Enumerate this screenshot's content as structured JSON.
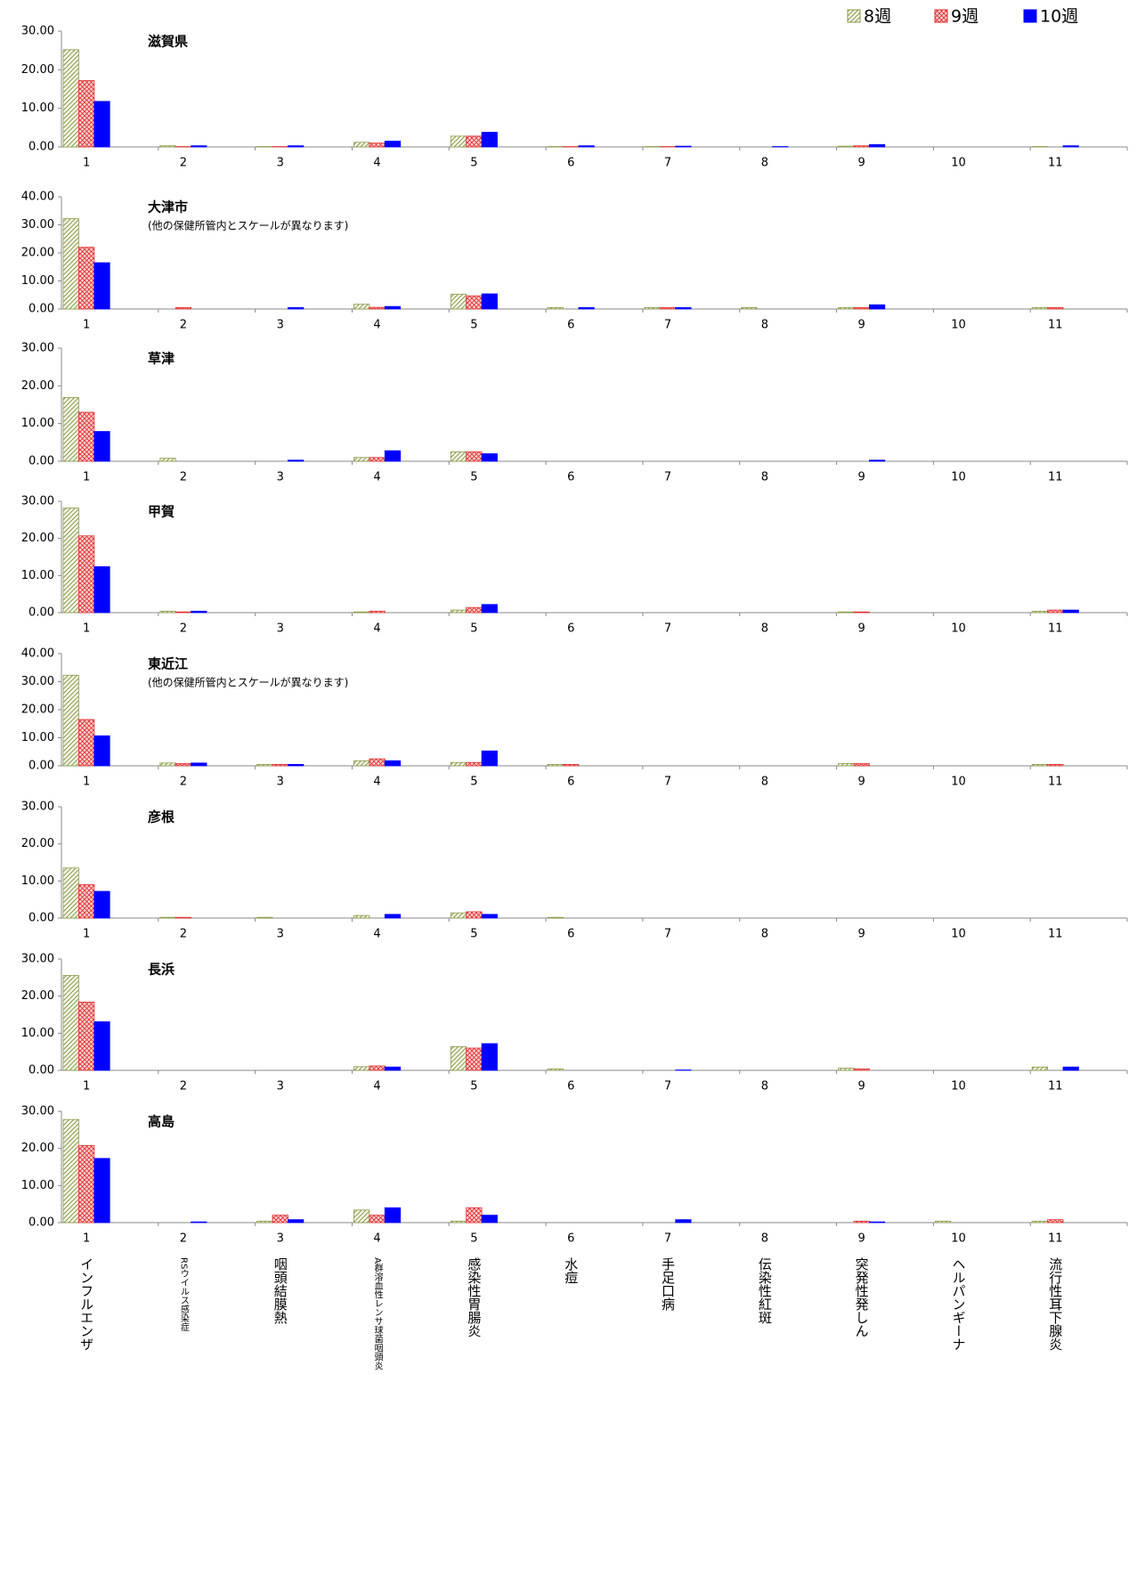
{
  "chart_data": [
    {
      "type": "bar",
      "title": "滋賀県",
      "categories": [
        "1",
        "2",
        "3",
        "4",
        "5",
        "6",
        "7",
        "8",
        "9",
        "10",
        "11"
      ],
      "series": [
        {
          "name": "8週",
          "color": "#8a9a48",
          "pattern": "hatch",
          "values": [
            25.2,
            0.3,
            0.1,
            1.2,
            2.8,
            0.1,
            0.1,
            0,
            0.2,
            0,
            0.1
          ]
        },
        {
          "name": "9週",
          "color": "#e03030",
          "pattern": "cross",
          "values": [
            17.2,
            0.1,
            0.1,
            1.0,
            2.8,
            0.1,
            0.1,
            0,
            0.3,
            0,
            0
          ]
        },
        {
          "name": "10週",
          "color": "#0000ff",
          "pattern": "solid",
          "values": [
            11.8,
            0.3,
            0.3,
            1.5,
            3.8,
            0.3,
            0.2,
            0.1,
            0.6,
            0,
            0.3
          ]
        }
      ],
      "ylim": [
        0,
        30
      ],
      "yticks": [
        {
          "value": 0,
          "label": "0.00"
        },
        {
          "value": 10,
          "label": "10.00"
        },
        {
          "value": 20,
          "label": "20.00"
        },
        {
          "value": 30,
          "label": "30.00"
        }
      ]
    },
    {
      "type": "bar",
      "title": "大津市",
      "subtitle": "(他の保健所管内とスケールが異なります)",
      "categories": [
        "1",
        "2",
        "3",
        "4",
        "5",
        "6",
        "7",
        "8",
        "9",
        "10",
        "11"
      ],
      "series": [
        {
          "name": "8週",
          "color": "#8a9a48",
          "pattern": "hatch",
          "values": [
            32.2,
            0,
            0,
            1.7,
            5.3,
            0.5,
            0.5,
            0.5,
            0.5,
            0,
            0.5
          ]
        },
        {
          "name": "9週",
          "color": "#e03030",
          "pattern": "cross",
          "values": [
            22.0,
            0.5,
            0,
            0.6,
            4.7,
            0,
            0.5,
            0,
            0.5,
            0,
            0.5
          ]
        },
        {
          "name": "10週",
          "color": "#0000ff",
          "pattern": "solid",
          "values": [
            16.5,
            0,
            0.5,
            0.9,
            5.4,
            0.5,
            0.5,
            0,
            1.5,
            0,
            0
          ]
        }
      ],
      "ylim": [
        0,
        40
      ],
      "yticks": [
        {
          "value": 0,
          "label": "0.00"
        },
        {
          "value": 10,
          "label": "10.00"
        },
        {
          "value": 20,
          "label": "20.00"
        },
        {
          "value": 30,
          "label": "30.00"
        },
        {
          "value": 40,
          "label": "40.00"
        }
      ]
    },
    {
      "type": "bar",
      "title": "草津",
      "categories": [
        "1",
        "2",
        "3",
        "4",
        "5",
        "6",
        "7",
        "8",
        "9",
        "10",
        "11"
      ],
      "series": [
        {
          "name": "8週",
          "color": "#8a9a48",
          "pattern": "hatch",
          "values": [
            16.9,
            0.8,
            0,
            1.0,
            2.5,
            0,
            0,
            0,
            0,
            0,
            0
          ]
        },
        {
          "name": "9週",
          "color": "#e03030",
          "pattern": "cross",
          "values": [
            13.0,
            0,
            0,
            1.0,
            2.5,
            0,
            0,
            0,
            0,
            0,
            0
          ]
        },
        {
          "name": "10週",
          "color": "#0000ff",
          "pattern": "solid",
          "values": [
            7.9,
            0,
            0.3,
            2.8,
            2.0,
            0,
            0,
            0,
            0.3,
            0,
            0
          ]
        }
      ],
      "ylim": [
        0,
        30
      ],
      "yticks": [
        {
          "value": 0,
          "label": "0.00"
        },
        {
          "value": 10,
          "label": "10.00"
        },
        {
          "value": 20,
          "label": "20.00"
        },
        {
          "value": 30,
          "label": "30.00"
        }
      ]
    },
    {
      "type": "bar",
      "title": "甲賀",
      "categories": [
        "1",
        "2",
        "3",
        "4",
        "5",
        "6",
        "7",
        "8",
        "9",
        "10",
        "11"
      ],
      "series": [
        {
          "name": "8週",
          "color": "#8a9a48",
          "pattern": "hatch",
          "values": [
            28.2,
            0.4,
            0,
            0.2,
            0.7,
            0,
            0,
            0,
            0.2,
            0,
            0.4
          ]
        },
        {
          "name": "9週",
          "color": "#e03030",
          "pattern": "cross",
          "values": [
            20.7,
            0.2,
            0,
            0.4,
            1.4,
            0,
            0,
            0,
            0.2,
            0,
            0.7
          ]
        },
        {
          "name": "10週",
          "color": "#0000ff",
          "pattern": "solid",
          "values": [
            12.4,
            0.4,
            0,
            0,
            2.2,
            0,
            0,
            0,
            0,
            0,
            0.7
          ]
        }
      ],
      "ylim": [
        0,
        30
      ],
      "yticks": [
        {
          "value": 0,
          "label": "0.00"
        },
        {
          "value": 10,
          "label": "10.00"
        },
        {
          "value": 20,
          "label": "20.00"
        },
        {
          "value": 30,
          "label": "30.00"
        }
      ]
    },
    {
      "type": "bar",
      "title": "東近江",
      "subtitle": "(他の保健所管内とスケールが異なります)",
      "categories": [
        "1",
        "2",
        "3",
        "4",
        "5",
        "6",
        "7",
        "8",
        "9",
        "10",
        "11"
      ],
      "series": [
        {
          "name": "8週",
          "color": "#8a9a48",
          "pattern": "hatch",
          "values": [
            32.3,
            1.0,
            0.5,
            1.8,
            1.2,
            0.5,
            0,
            0,
            0.8,
            0,
            0.5
          ]
        },
        {
          "name": "9週",
          "color": "#e03030",
          "pattern": "cross",
          "values": [
            16.5,
            0.8,
            0.5,
            2.5,
            1.2,
            0.5,
            0,
            0,
            0.8,
            0,
            0.5
          ]
        },
        {
          "name": "10週",
          "color": "#0000ff",
          "pattern": "solid",
          "values": [
            10.7,
            1.0,
            0.5,
            1.8,
            5.3,
            0,
            0,
            0,
            0,
            0,
            0
          ]
        }
      ],
      "ylim": [
        0,
        40
      ],
      "yticks": [
        {
          "value": 0,
          "label": "0.00"
        },
        {
          "value": 10,
          "label": "10.00"
        },
        {
          "value": 20,
          "label": "20.00"
        },
        {
          "value": 30,
          "label": "30.00"
        },
        {
          "value": 40,
          "label": "40.00"
        }
      ]
    },
    {
      "type": "bar",
      "title": "彦根",
      "categories": [
        "1",
        "2",
        "3",
        "4",
        "5",
        "6",
        "7",
        "8",
        "9",
        "10",
        "11"
      ],
      "series": [
        {
          "name": "8週",
          "color": "#8a9a48",
          "pattern": "hatch",
          "values": [
            13.5,
            0.2,
            0.2,
            0.7,
            1.4,
            0.2,
            0,
            0,
            0,
            0,
            0
          ]
        },
        {
          "name": "9週",
          "color": "#e03030",
          "pattern": "cross",
          "values": [
            9.0,
            0.2,
            0,
            0,
            1.7,
            0,
            0,
            0,
            0,
            0,
            0
          ]
        },
        {
          "name": "10週",
          "color": "#0000ff",
          "pattern": "solid",
          "values": [
            7.2,
            0,
            0,
            1.0,
            1.0,
            0,
            0,
            0,
            0,
            0,
            0
          ]
        }
      ],
      "ylim": [
        0,
        30
      ],
      "yticks": [
        {
          "value": 0,
          "label": "0.00"
        },
        {
          "value": 10,
          "label": "10.00"
        },
        {
          "value": 20,
          "label": "20.00"
        },
        {
          "value": 30,
          "label": "30.00"
        }
      ]
    },
    {
      "type": "bar",
      "title": "長浜",
      "categories": [
        "1",
        "2",
        "3",
        "4",
        "5",
        "6",
        "7",
        "8",
        "9",
        "10",
        "11"
      ],
      "series": [
        {
          "name": "8週",
          "color": "#8a9a48",
          "pattern": "hatch",
          "values": [
            25.6,
            0,
            0,
            1.0,
            6.4,
            0.4,
            0,
            0,
            0.6,
            0,
            0.9
          ]
        },
        {
          "name": "9週",
          "color": "#e03030",
          "pattern": "cross",
          "values": [
            18.4,
            0,
            0,
            1.2,
            6.0,
            0,
            0,
            0,
            0.4,
            0,
            0
          ]
        },
        {
          "name": "10週",
          "color": "#0000ff",
          "pattern": "solid",
          "values": [
            13.1,
            0,
            0,
            0.9,
            7.2,
            0,
            0.1,
            0,
            0,
            0,
            0.9
          ]
        }
      ],
      "ylim": [
        0,
        30
      ],
      "yticks": [
        {
          "value": 0,
          "label": "0.00"
        },
        {
          "value": 10,
          "label": "10.00"
        },
        {
          "value": 20,
          "label": "20.00"
        },
        {
          "value": 30,
          "label": "30.00"
        }
      ]
    },
    {
      "type": "bar",
      "title": "高島",
      "categories": [
        "1",
        "2",
        "3",
        "4",
        "5",
        "6",
        "7",
        "8",
        "9",
        "10",
        "11"
      ],
      "series": [
        {
          "name": "8週",
          "color": "#8a9a48",
          "pattern": "hatch",
          "values": [
            27.8,
            0,
            0.4,
            3.4,
            0.4,
            0,
            0,
            0,
            0,
            0.4,
            0.4
          ]
        },
        {
          "name": "9週",
          "color": "#e03030",
          "pattern": "cross",
          "values": [
            20.8,
            0,
            2.0,
            2.0,
            4.0,
            0,
            0,
            0,
            0.4,
            0,
            0.8
          ]
        },
        {
          "name": "10週",
          "color": "#0000ff",
          "pattern": "solid",
          "values": [
            17.3,
            0.2,
            0.8,
            4.0,
            2.0,
            0,
            0.8,
            0,
            0.2,
            0,
            0
          ]
        }
      ],
      "ylim": [
        0,
        30
      ],
      "yticks": [
        {
          "value": 0,
          "label": "0.00"
        },
        {
          "value": 10,
          "label": "10.00"
        },
        {
          "value": 20,
          "label": "20.00"
        },
        {
          "value": 30,
          "label": "30.00"
        }
      ]
    }
  ],
  "disease_names": [
    "インフルエンザ",
    "RSウイルス感染症",
    "咽頭結膜熱",
    "A群溶血性レンサ球菌咽頭炎",
    "感染性胃腸炎",
    "水痘",
    "手足口病",
    "伝染性紅斑",
    "突発性発しん",
    "ヘルパンギーナ",
    "流行性耳下腺炎"
  ]
}
